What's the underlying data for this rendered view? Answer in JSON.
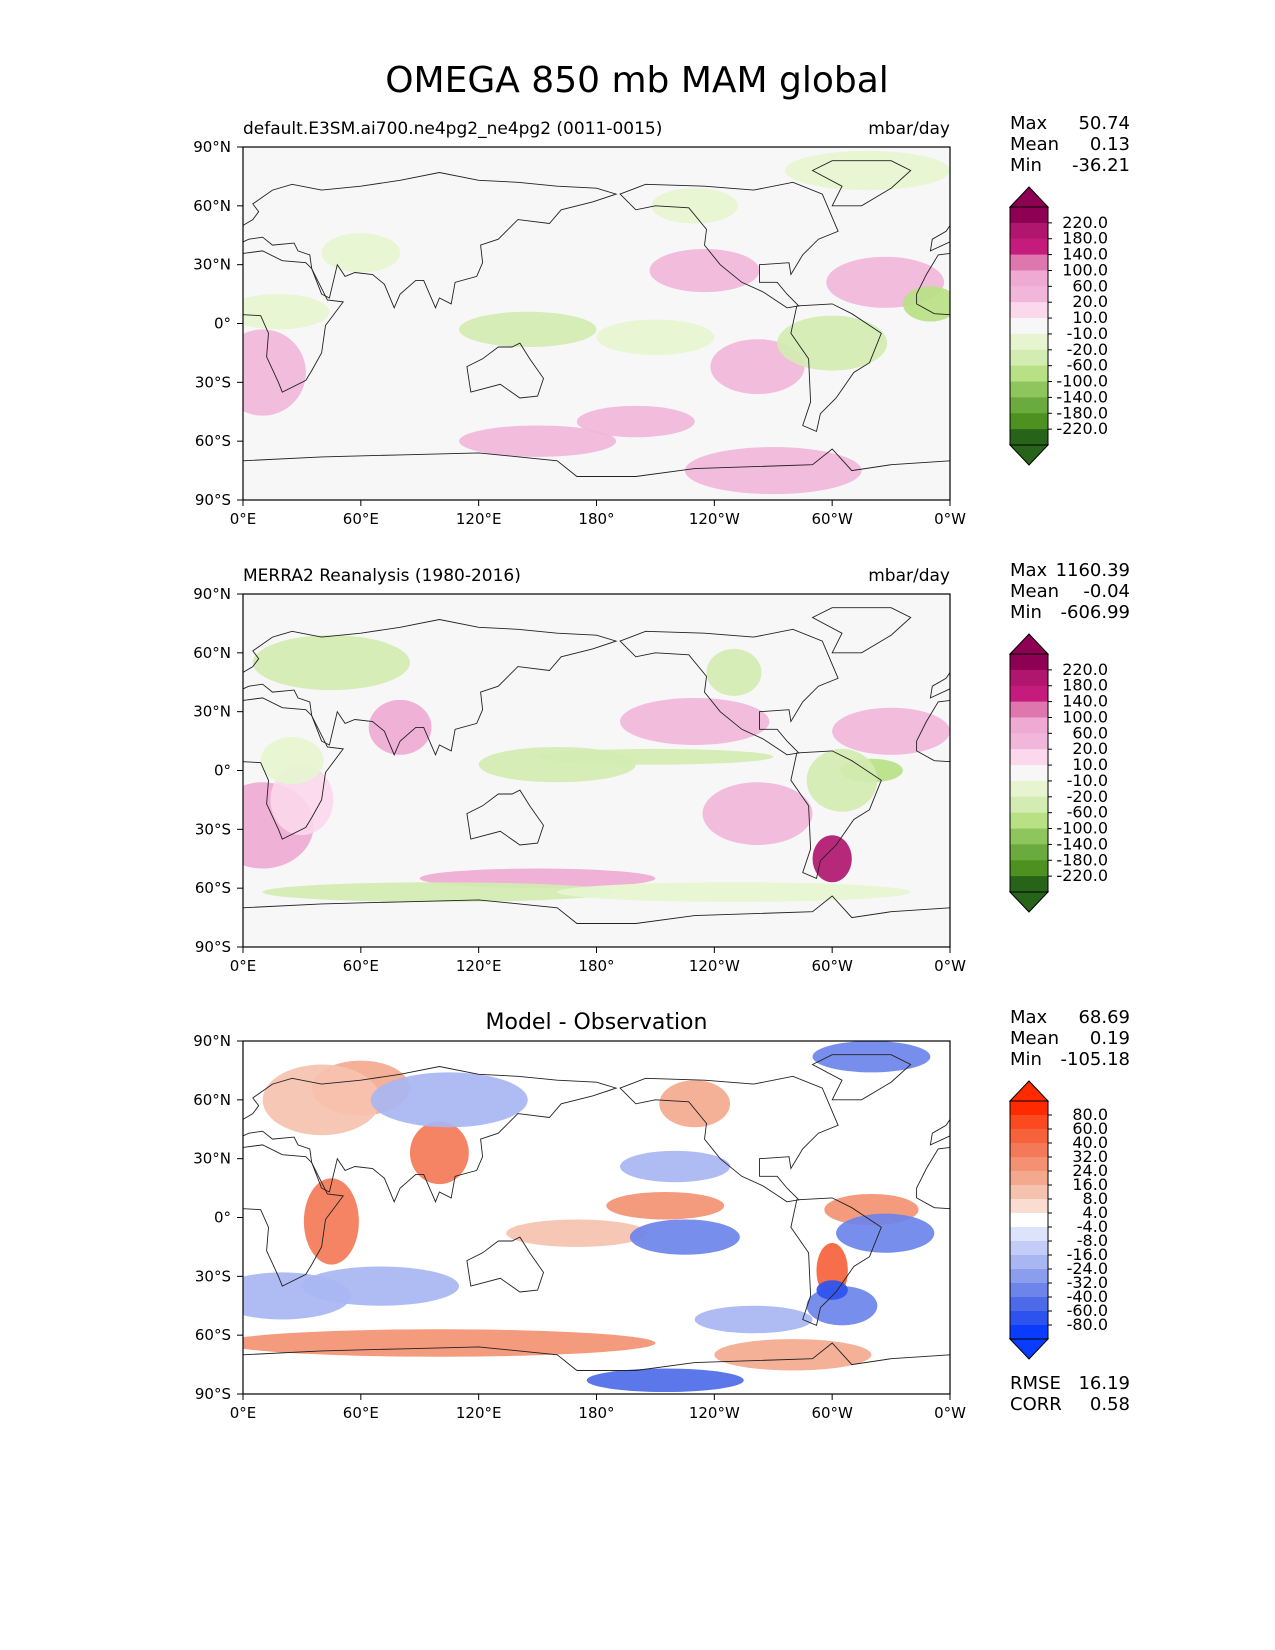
{
  "figure_title": "OMEGA 850 mb MAM global",
  "chart_data": [
    {
      "type": "heatmap",
      "id": "model",
      "title_left": "default.E3SM.ai700.ne4pg2_ne4pg2 (0011-0015)",
      "title_right": "mbar/day",
      "title_center": "",
      "x_ticks": [
        "0°E",
        "60°E",
        "120°E",
        "180°",
        "120°W",
        "60°W",
        "0°W"
      ],
      "y_ticks": [
        "90°N",
        "60°N",
        "30°N",
        "0°",
        "30°S",
        "60°S",
        "90°S"
      ],
      "xlim": [
        0,
        360
      ],
      "ylim": [
        -90,
        90
      ],
      "stats": [
        {
          "label": "Max",
          "value": "50.74"
        },
        {
          "label": "Mean",
          "value": "0.13"
        },
        {
          "label": "Min",
          "value": "-36.21"
        }
      ],
      "colorbar": {
        "labels": [
          "220.0",
          "180.0",
          "140.0",
          "100.0",
          "60.0",
          "20.0",
          "10.0",
          "-10.0",
          "-20.0",
          "-60.0",
          "-100.0",
          "-140.0",
          "-180.0",
          "-220.0"
        ],
        "colors": [
          "#8e0152",
          "#b0166e",
          "#c51b7d",
          "#de77ae",
          "#eeaad2",
          "#f1b6da",
          "#fbd8ec",
          "#f7f7f7",
          "#e6f5d0",
          "#d3ecb2",
          "#b8e186",
          "#8fc55d",
          "#6aaa3e",
          "#4d9221",
          "#276419"
        ],
        "extend_top": "#8e0152",
        "extend_bottom": "#276419"
      },
      "footer": []
    },
    {
      "type": "heatmap",
      "id": "obs",
      "title_left": "MERRA2 Reanalysis (1980-2016)",
      "title_right": "mbar/day",
      "title_center": "",
      "x_ticks": [
        "0°E",
        "60°E",
        "120°E",
        "180°",
        "120°W",
        "60°W",
        "0°W"
      ],
      "y_ticks": [
        "90°N",
        "60°N",
        "30°N",
        "0°",
        "30°S",
        "60°S",
        "90°S"
      ],
      "xlim": [
        0,
        360
      ],
      "ylim": [
        -90,
        90
      ],
      "stats": [
        {
          "label": "Max",
          "value": "1160.39"
        },
        {
          "label": "Mean",
          "value": "-0.04"
        },
        {
          "label": "Min",
          "value": "-606.99"
        }
      ],
      "colorbar": {
        "labels": [
          "220.0",
          "180.0",
          "140.0",
          "100.0",
          "60.0",
          "20.0",
          "10.0",
          "-10.0",
          "-20.0",
          "-60.0",
          "-100.0",
          "-140.0",
          "-180.0",
          "-220.0"
        ],
        "colors": [
          "#8e0152",
          "#b0166e",
          "#c51b7d",
          "#de77ae",
          "#eeaad2",
          "#f1b6da",
          "#fbd8ec",
          "#f7f7f7",
          "#e6f5d0",
          "#d3ecb2",
          "#b8e186",
          "#8fc55d",
          "#6aaa3e",
          "#4d9221",
          "#276419"
        ],
        "extend_top": "#8e0152",
        "extend_bottom": "#276419"
      },
      "footer": []
    },
    {
      "type": "heatmap",
      "id": "diff",
      "title_left": "",
      "title_right": "",
      "title_center": "Model - Observation",
      "x_ticks": [
        "0°E",
        "60°E",
        "120°E",
        "180°",
        "120°W",
        "60°W",
        "0°W"
      ],
      "y_ticks": [
        "90°N",
        "60°N",
        "30°N",
        "0°",
        "30°S",
        "60°S",
        "90°S"
      ],
      "xlim": [
        0,
        360
      ],
      "ylim": [
        -90,
        90
      ],
      "stats": [
        {
          "label": "Max",
          "value": "68.69"
        },
        {
          "label": "Mean",
          "value": "0.19"
        },
        {
          "label": "Min",
          "value": "-105.18"
        }
      ],
      "colorbar": {
        "labels": [
          "80.0",
          "60.0",
          "40.0",
          "32.0",
          "24.0",
          "16.0",
          "8.0",
          "4.0",
          "-4.0",
          "-8.0",
          "-16.0",
          "-24.0",
          "-32.0",
          "-40.0",
          "-60.0",
          "-80.0"
        ],
        "colors": [
          "#ff2a00",
          "#fb4a1f",
          "#f6623c",
          "#f47958",
          "#f39172",
          "#f4a98f",
          "#f6c2b0",
          "#fadcd1",
          "#ffffff",
          "#dde3fb",
          "#c3cdf7",
          "#a8b6f2",
          "#8b9ded",
          "#6d84ea",
          "#4d6be8",
          "#2e52ee",
          "#0a3cff"
        ],
        "extend_top": "#ff2a00",
        "extend_bottom": "#0a3cff"
      },
      "footer": [
        {
          "label": "RMSE",
          "value": "16.19"
        },
        {
          "label": "CORR",
          "value": "0.58"
        }
      ]
    }
  ]
}
